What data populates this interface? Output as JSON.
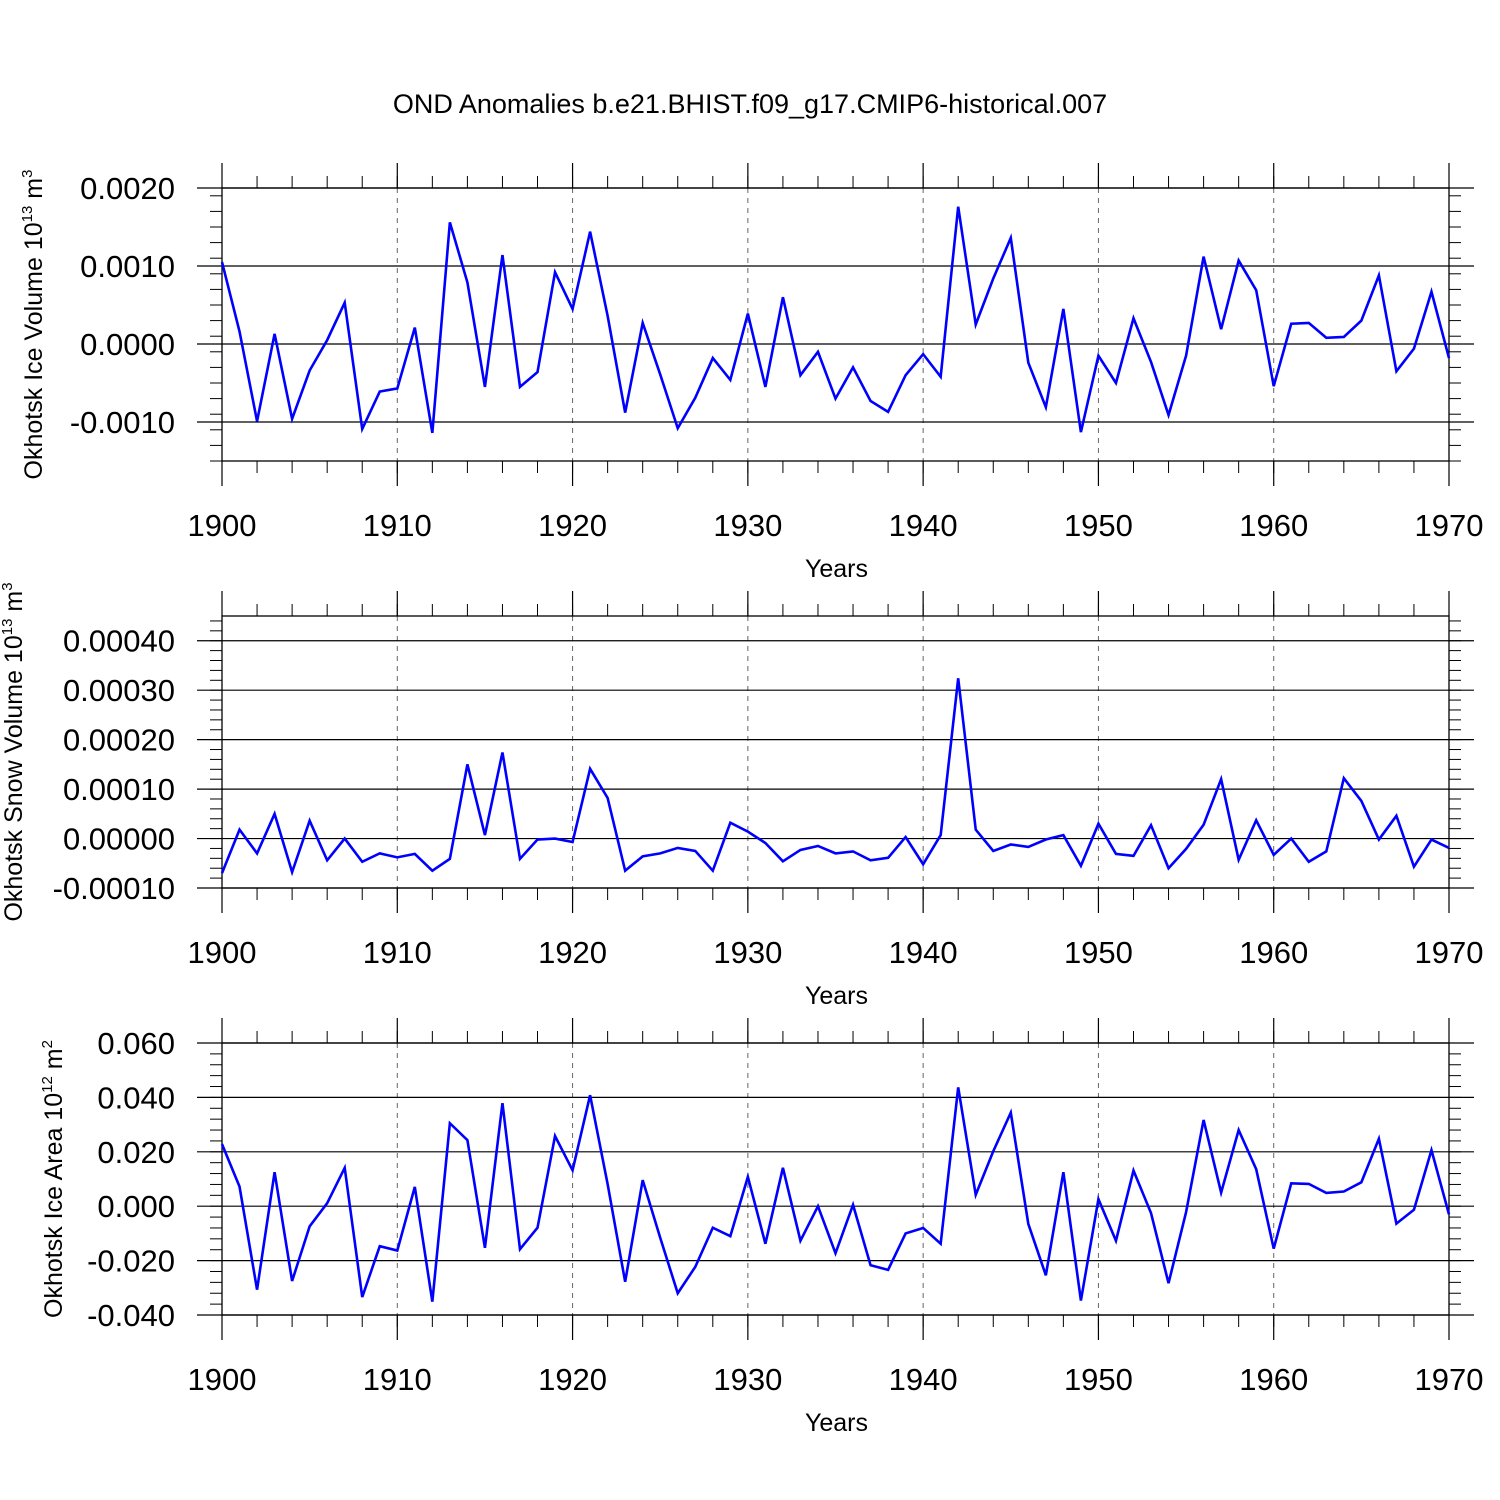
{
  "title": "OND Anomalies b.e21.BHIST.f09_g17.CMIP6-historical.007",
  "colors": {
    "line": "#0000ff",
    "axis": "#000000",
    "grid": "#666666"
  },
  "chart_data": [
    {
      "type": "line",
      "name": "ice-volume",
      "ylabel": {
        "text": "Okhotsk Ice Volume 10",
        "sup": "13",
        "unit": " m",
        "unit_sup": "3"
      },
      "xlabel": "Years",
      "xlim": [
        1900,
        1970
      ],
      "ylim": [
        -0.0015,
        0.002
      ],
      "yticks": [
        -0.001,
        0.0,
        0.001,
        0.002
      ],
      "ytick_labels": [
        "-0.0010",
        "0.0000",
        "0.0010",
        "0.0020"
      ],
      "xticks": [
        1900,
        1910,
        1920,
        1930,
        1940,
        1950,
        1960,
        1970
      ],
      "xtick_labels": [
        "1900",
        "1910",
        "1920",
        "1930",
        "1940",
        "1950",
        "1960",
        "1970"
      ],
      "grid": "vertical dashed at decades",
      "series": [
        {
          "name": "Okhotsk Ice Volume",
          "x_start": 1900,
          "values": [
            0.00105,
            0.00016,
            -0.00099,
            0.00013,
            -0.00096,
            -0.00034,
            5e-05,
            0.00053,
            -0.00109,
            -0.00061,
            -0.00057,
            0.00021,
            -0.00114,
            0.00156,
            0.00079,
            -0.00055,
            0.00114,
            -0.00055,
            -0.00036,
            0.00092,
            0.00045,
            0.00144,
            0.00036,
            -0.00088,
            0.00027,
            -0.00039,
            -0.00108,
            -0.00069,
            -0.00018,
            -0.00046,
            0.00039,
            -0.00055,
            0.0006,
            -0.0004,
            -0.0001,
            -0.0007,
            -0.0003,
            -0.00073,
            -0.00087,
            -0.0004,
            -0.00013,
            -0.00042,
            0.00176,
            0.00025,
            0.00084,
            0.00136,
            -0.00024,
            -0.00081,
            0.00045,
            -0.00113,
            -0.00015,
            -0.0005,
            0.00033,
            -0.00023,
            -0.00091,
            -0.00015,
            0.00112,
            0.00019,
            0.00107,
            0.00069,
            -0.00054,
            0.00026,
            0.00027,
            8e-05,
            9e-05,
            0.0003,
            0.00088,
            -0.00035,
            -6e-05,
            0.00067,
            -0.00018
          ]
        }
      ]
    },
    {
      "type": "line",
      "name": "snow-volume",
      "ylabel": {
        "text": "Okhotsk Snow Volume 10",
        "sup": "13",
        "unit": " m",
        "unit_sup": "3"
      },
      "xlabel": "Years",
      "xlim": [
        1900,
        1970
      ],
      "ylim": [
        -0.0001,
        0.00045
      ],
      "yticks": [
        -0.0001,
        0.0,
        0.0001,
        0.0002,
        0.0003,
        0.0004
      ],
      "ytick_labels": [
        "-0.00010",
        "0.00000",
        "0.00010",
        "0.00020",
        "0.00030",
        "0.00040"
      ],
      "xticks": [
        1900,
        1910,
        1920,
        1930,
        1940,
        1950,
        1960,
        1970
      ],
      "xtick_labels": [
        "1900",
        "1910",
        "1920",
        "1930",
        "1940",
        "1950",
        "1960",
        "1970"
      ],
      "grid": "vertical dashed at decades",
      "series": [
        {
          "name": "Okhotsk Snow Volume",
          "x_start": 1900,
          "values": [
            -7e-05,
            1.8e-05,
            -3e-05,
            5e-05,
            -6.8e-05,
            3.6e-05,
            -4.4e-05,
            0.0,
            -4.7e-05,
            -3e-05,
            -3.8e-05,
            -3.1e-05,
            -6.5e-05,
            -4.1e-05,
            0.00015,
            7e-06,
            0.000174,
            -4.1e-05,
            -2e-06,
            0.0,
            -7e-06,
            0.000141,
            8.2e-05,
            -6.5e-05,
            -3.6e-05,
            -3e-05,
            -1.9e-05,
            -2.5e-05,
            -6.5e-05,
            3.2e-05,
            1.4e-05,
            -9e-06,
            -4.6e-05,
            -2.3e-05,
            -1.5e-05,
            -3e-05,
            -2.6e-05,
            -4.4e-05,
            -3.9e-05,
            3e-06,
            -5.2e-05,
            7e-06,
            0.000324,
            1.8e-05,
            -2.5e-05,
            -1.2e-05,
            -1.7e-05,
            -2e-06,
            7e-06,
            -5.5e-05,
            3e-05,
            -3.1e-05,
            -3.5e-05,
            2.7e-05,
            -6e-05,
            -2.1e-05,
            2.8e-05,
            0.00012,
            -4.3e-05,
            3.7e-05,
            -3.3e-05,
            0.0,
            -4.7e-05,
            -2.6e-05,
            0.000122,
            7.6e-05,
            -2e-06,
            4.6e-05,
            -5.7e-05,
            -2e-06,
            -1.9e-05
          ]
        }
      ]
    },
    {
      "type": "line",
      "name": "ice-area",
      "ylabel": {
        "text": "Okhotsk Ice Area 10",
        "sup": "12",
        "unit": " m",
        "unit_sup": "2"
      },
      "xlabel": "Years",
      "xlim": [
        1900,
        1970
      ],
      "ylim": [
        -0.04,
        0.06
      ],
      "yticks": [
        -0.04,
        -0.02,
        0.0,
        0.02,
        0.04,
        0.06
      ],
      "ytick_labels": [
        "-0.040",
        "-0.020",
        "0.000",
        "0.020",
        "0.040",
        "0.060"
      ],
      "xticks": [
        1900,
        1910,
        1920,
        1930,
        1940,
        1950,
        1960,
        1970
      ],
      "xtick_labels": [
        "1900",
        "1910",
        "1920",
        "1930",
        "1940",
        "1950",
        "1960",
        "1970"
      ],
      "grid": "vertical dashed at decades",
      "series": [
        {
          "name": "Okhotsk Ice Area",
          "x_start": 1900,
          "values": [
            0.0228,
            0.0072,
            -0.0307,
            0.0125,
            -0.0275,
            -0.0074,
            0.0011,
            0.0141,
            -0.0334,
            -0.0147,
            -0.0163,
            0.0071,
            -0.0351,
            0.0305,
            0.0243,
            -0.0153,
            0.0379,
            -0.0158,
            -0.0079,
            0.0258,
            0.0132,
            0.0408,
            0.0081,
            -0.0278,
            0.0096,
            -0.0116,
            -0.032,
            -0.0223,
            -0.0079,
            -0.011,
            0.0108,
            -0.0138,
            0.0141,
            -0.0127,
            0.0,
            -0.0173,
            0.0005,
            -0.0217,
            -0.0234,
            -0.01,
            -0.008,
            -0.0138,
            0.0437,
            0.0042,
            0.0202,
            0.0344,
            -0.0065,
            -0.0254,
            0.0125,
            -0.0347,
            0.0026,
            -0.0127,
            0.0131,
            -0.0025,
            -0.0283,
            -0.0022,
            0.0317,
            0.005,
            0.028,
            0.0136,
            -0.0156,
            0.0084,
            0.0082,
            0.0049,
            0.0054,
            0.0088,
            0.0248,
            -0.0064,
            -0.0013,
            0.0206,
            -0.003
          ]
        }
      ]
    }
  ]
}
